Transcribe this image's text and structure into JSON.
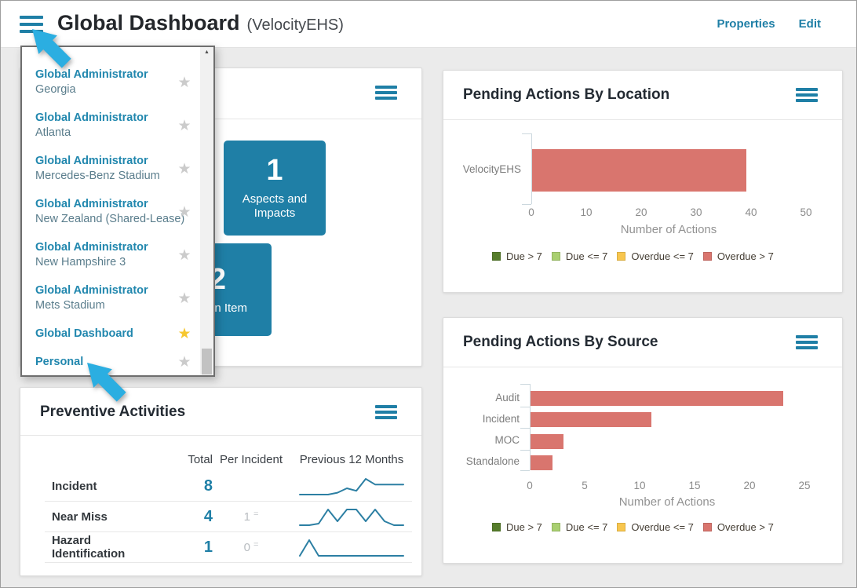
{
  "header": {
    "title": "Global Dashboard",
    "subtitle": "(VelocityEHS)",
    "properties_label": "Properties",
    "edit_label": "Edit"
  },
  "dashboard_menu": {
    "items": [
      {
        "title": "Global Administrator",
        "subtitle": "Georgia",
        "favorite": false
      },
      {
        "title": "Global Administrator",
        "subtitle": "Atlanta",
        "favorite": false
      },
      {
        "title": "Global Administrator",
        "subtitle": "Mercedes-Benz Stadium",
        "favorite": false
      },
      {
        "title": "Global Administrator",
        "subtitle": "New Zealand (Shared-Lease)",
        "favorite": false
      },
      {
        "title": "Global Administrator",
        "subtitle": "New Hampshire 3",
        "favorite": false
      },
      {
        "title": "Global Administrator",
        "subtitle": "Mets Stadium",
        "favorite": false
      },
      {
        "title": "Global Dashboard",
        "subtitle": "",
        "favorite": true
      },
      {
        "title": "Personal",
        "subtitle": "",
        "favorite": false
      }
    ]
  },
  "summary_card": {
    "tiles": [
      {
        "count": "1",
        "label": "Aspects and Impacts"
      },
      {
        "count": "2",
        "label": "Action Item"
      }
    ]
  },
  "preventive_activities": {
    "title": "Preventive Activities",
    "columns": [
      "Total",
      "Per Incident",
      "Previous 12 Months"
    ],
    "rows": [
      {
        "label": "Incident",
        "total": "8",
        "per_incident": "",
        "per_incident_symbol": "",
        "trend": [
          0,
          0,
          0,
          0,
          0.3,
          1,
          0.6,
          2.5,
          1.6,
          1.6,
          1.6,
          1.6
        ]
      },
      {
        "label": "Near Miss",
        "total": "4",
        "per_incident": "1",
        "per_incident_symbol": "=",
        "trend": [
          0,
          0,
          0.2,
          2,
          0.5,
          2,
          2,
          0.5,
          2,
          0.5,
          0,
          0
        ]
      },
      {
        "label": "Hazard Identification",
        "total": "1",
        "per_incident": "0",
        "per_incident_symbol": "=",
        "trend": [
          0,
          2,
          0,
          0,
          0,
          0,
          0,
          0,
          0,
          0,
          0,
          0
        ]
      }
    ]
  },
  "chart_data": [
    {
      "type": "bar",
      "orientation": "horizontal",
      "title": "Pending Actions By Location",
      "categories": [
        "VelocityEHS"
      ],
      "series": [
        {
          "name": "Overdue > 7",
          "color": "#D9756E",
          "values": [
            39
          ]
        }
      ],
      "xlabel": "Number of Actions",
      "xlim": [
        0,
        50
      ],
      "xticks": [
        0,
        10,
        20,
        30,
        40,
        50
      ],
      "grid": false,
      "legend_position": "bottom",
      "legend": [
        {
          "label": "Due > 7",
          "color": "#567D2B"
        },
        {
          "label": "Due <= 7",
          "color": "#A9CF70"
        },
        {
          "label": "Overdue <= 7",
          "color": "#F8C64E"
        },
        {
          "label": "Overdue > 7",
          "color": "#D9756E"
        }
      ]
    },
    {
      "type": "bar",
      "orientation": "horizontal",
      "title": "Pending Actions By Source",
      "categories": [
        "Audit",
        "Incident",
        "MOC",
        "Standalone"
      ],
      "series": [
        {
          "name": "Overdue > 7",
          "color": "#D9756E",
          "values": [
            23,
            11,
            3,
            2
          ]
        }
      ],
      "xlabel": "Number of Actions",
      "xlim": [
        0,
        25
      ],
      "xticks": [
        0,
        5,
        10,
        15,
        20,
        25
      ],
      "grid": false,
      "legend_position": "bottom",
      "legend": [
        {
          "label": "Due > 7",
          "color": "#567D2B"
        },
        {
          "label": "Due <= 7",
          "color": "#A9CF70"
        },
        {
          "label": "Overdue <= 7",
          "color": "#F8C64E"
        },
        {
          "label": "Overdue > 7",
          "color": "#D9756E"
        }
      ]
    }
  ],
  "colors": {
    "accent_teal": "#1F7FA6",
    "bar_overdue_gt7": "#D9756E",
    "legend_due_gt7": "#567D2B",
    "legend_due_lte7": "#A9CF70",
    "legend_overdue_lte7": "#F8C64E",
    "legend_overdue_gt7": "#D9756E",
    "favorite_star": "#F6C72F",
    "annotation_arrow": "#2BAEE1",
    "sparkline": "#2C7FA3"
  }
}
